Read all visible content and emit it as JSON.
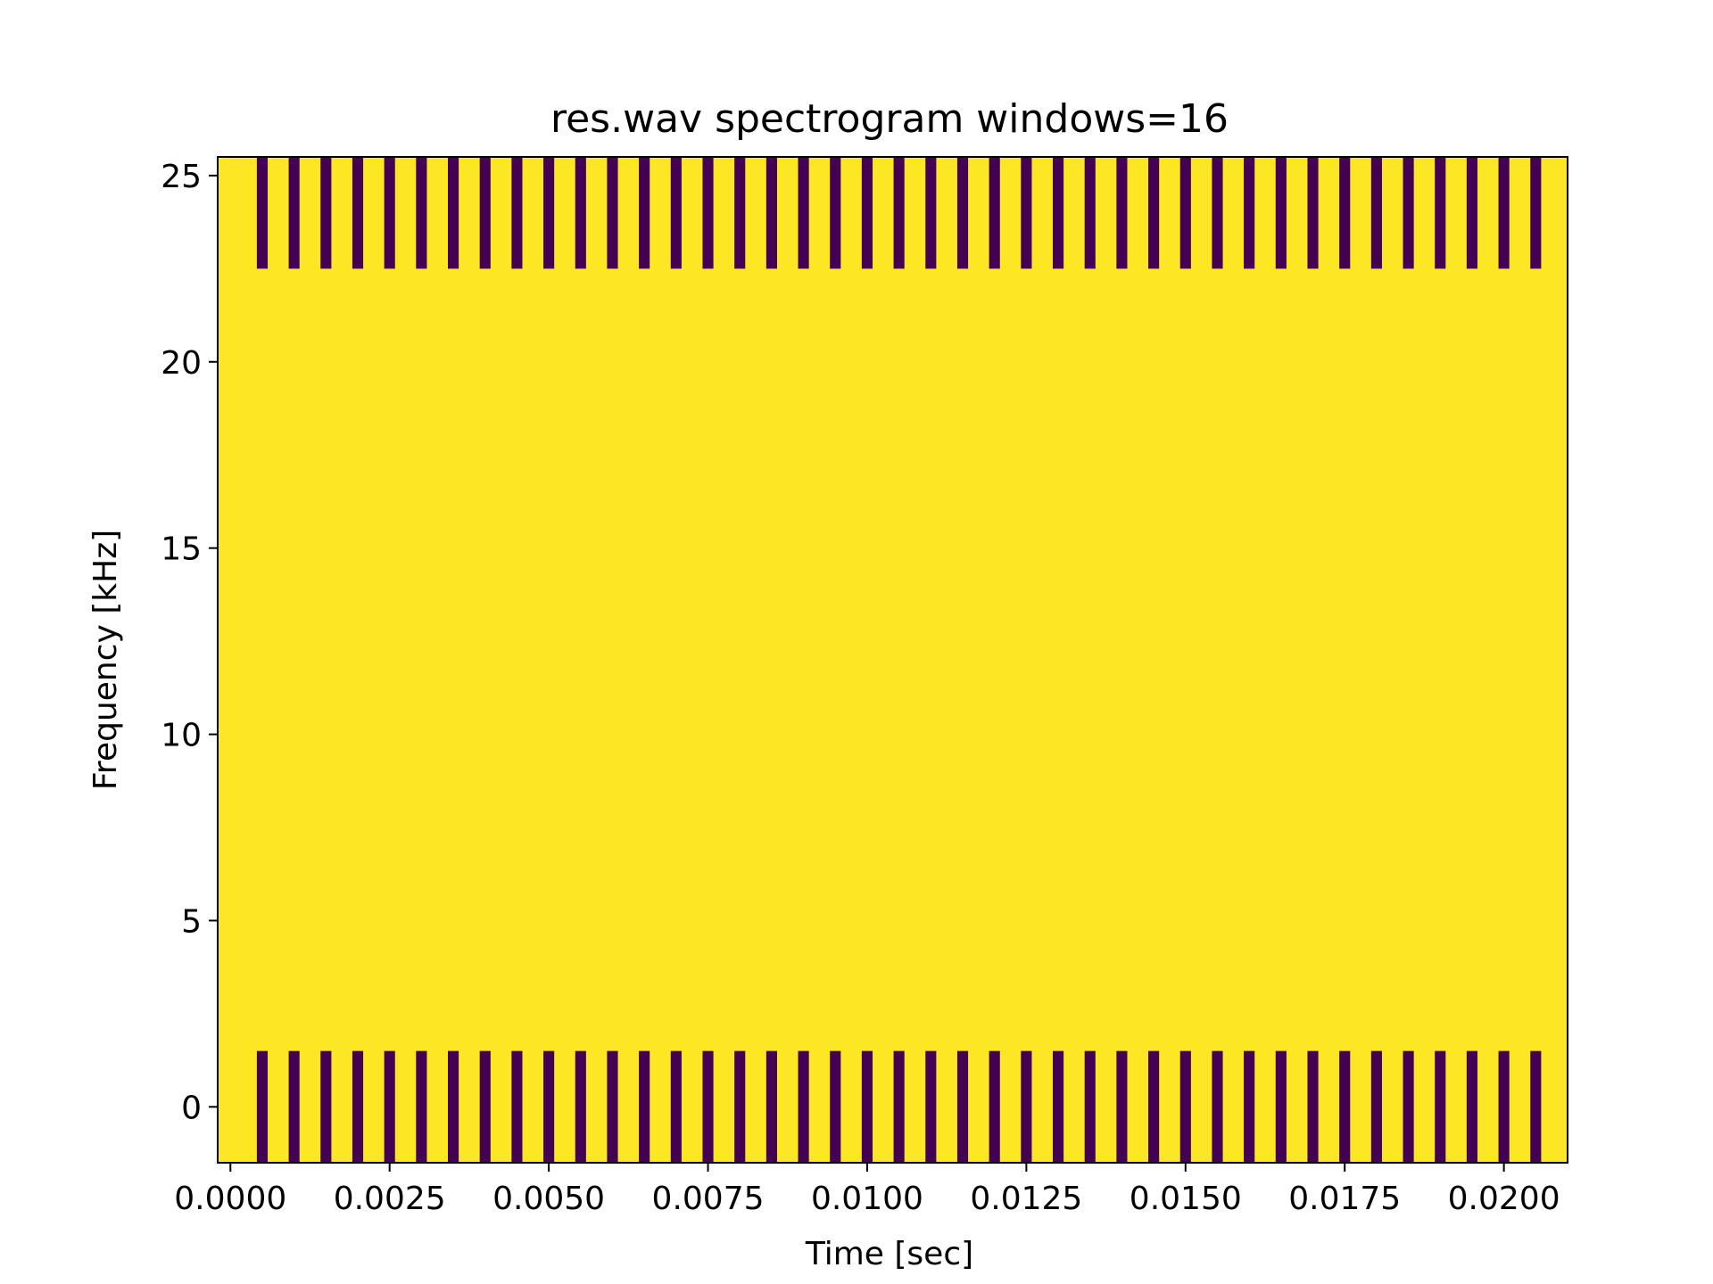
{
  "chart_data": {
    "type": "heatmap",
    "title": "res.wav spectrogram windows=16",
    "xlabel": "Time [sec]",
    "ylabel": "Frequency [kHz]",
    "xlim": [
      -0.0002,
      0.021
    ],
    "ylim": [
      -1.5,
      25.5
    ],
    "xticks": [
      0.0,
      0.0025,
      0.005,
      0.0075,
      0.01,
      0.0125,
      0.015,
      0.0175,
      0.02
    ],
    "xtick_labels": [
      "0.0000",
      "0.0025",
      "0.0050",
      "0.0075",
      "0.0100",
      "0.0125",
      "0.0150",
      "0.0175",
      "0.0200"
    ],
    "yticks": [
      0,
      5,
      10,
      15,
      20,
      25
    ],
    "ytick_labels": [
      "0",
      "5",
      "10",
      "15",
      "20",
      "25"
    ],
    "grid": false,
    "colormap": "viridis",
    "background_color": "#fde725",
    "stripe_color": "#440154",
    "stripe_first_time": 0.0005,
    "stripe_period": 0.0005,
    "stripe_count": 41,
    "stripe_width_time": 0.00017,
    "stripe_bands": [
      {
        "low_khz": 22.5,
        "high_khz": 25.5
      },
      {
        "low_khz": -1.5,
        "high_khz": 1.5
      }
    ]
  }
}
